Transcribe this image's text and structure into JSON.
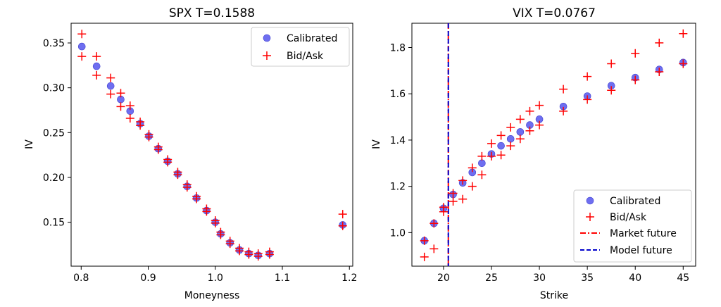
{
  "chart_data": [
    {
      "type": "scatter",
      "title": "SPX T=0.1588",
      "xlabel": "Moneyness",
      "ylabel": "IV",
      "xlim": [
        0.785,
        1.205
      ],
      "ylim": [
        0.101,
        0.372
      ],
      "xticks": [
        0.8,
        0.9,
        1.0,
        1.1,
        1.2
      ],
      "xtick_labels": [
        "0.8",
        "0.9",
        "1.0",
        "1.1",
        "1.2"
      ],
      "yticks": [
        0.15,
        0.2,
        0.25,
        0.3,
        0.35
      ],
      "ytick_labels": [
        "0.15",
        "0.20",
        "0.25",
        "0.30",
        "0.35"
      ],
      "legend": {
        "placement": "top-right",
        "entries": [
          "Calibrated",
          "Bid/Ask"
        ]
      },
      "grid": false,
      "series": [
        {
          "name": "Calibrated",
          "marker": "circle",
          "color": "#6e6ef0",
          "x": [
            0.801,
            0.823,
            0.844,
            0.859,
            0.873,
            0.888,
            0.901,
            0.915,
            0.929,
            0.944,
            0.958,
            0.972,
            0.987,
            1.0,
            1.008,
            1.022,
            1.036,
            1.05,
            1.064,
            1.081,
            1.19
          ],
          "y": [
            0.346,
            0.324,
            0.302,
            0.287,
            0.274,
            0.26,
            0.246,
            0.232,
            0.218,
            0.204,
            0.19,
            0.177,
            0.163,
            0.15,
            0.137,
            0.127,
            0.119,
            0.115,
            0.113,
            0.115,
            0.147
          ]
        },
        {
          "name": "Bid/Ask",
          "marker": "plus",
          "color": "#ff0000",
          "x": [
            0.801,
            0.801,
            0.823,
            0.823,
            0.844,
            0.844,
            0.859,
            0.859,
            0.873,
            0.873,
            0.888,
            0.888,
            0.901,
            0.901,
            0.915,
            0.915,
            0.929,
            0.929,
            0.944,
            0.944,
            0.958,
            0.958,
            0.972,
            0.972,
            0.987,
            0.987,
            1.0,
            1.0,
            1.008,
            1.008,
            1.022,
            1.022,
            1.036,
            1.036,
            1.05,
            1.05,
            1.064,
            1.064,
            1.081,
            1.081,
            1.19,
            1.19
          ],
          "y": [
            0.36,
            0.335,
            0.335,
            0.314,
            0.311,
            0.293,
            0.294,
            0.279,
            0.28,
            0.266,
            0.262,
            0.258,
            0.248,
            0.245,
            0.234,
            0.231,
            0.22,
            0.217,
            0.206,
            0.203,
            0.192,
            0.189,
            0.179,
            0.176,
            0.165,
            0.162,
            0.152,
            0.149,
            0.139,
            0.136,
            0.129,
            0.126,
            0.121,
            0.118,
            0.117,
            0.114,
            0.115,
            0.112,
            0.117,
            0.114,
            0.159,
            0.146
          ]
        }
      ]
    },
    {
      "type": "scatter",
      "title": "VIX T=0.0767",
      "xlabel": "Strike",
      "ylabel": "IV",
      "xlim": [
        16.7,
        46.3
      ],
      "ylim": [
        0.855,
        1.905
      ],
      "xticks": [
        20,
        25,
        30,
        35,
        40,
        45
      ],
      "xtick_labels": [
        "20",
        "25",
        "30",
        "35",
        "40",
        "45"
      ],
      "yticks": [
        1.0,
        1.2,
        1.4,
        1.6,
        1.8
      ],
      "ytick_labels": [
        "1.0",
        "1.2",
        "1.4",
        "1.6",
        "1.8"
      ],
      "legend": {
        "placement": "bottom-right",
        "entries": [
          "Calibrated",
          "Bid/Ask",
          "Market future",
          "Model future"
        ]
      },
      "grid": false,
      "series": [
        {
          "name": "Calibrated",
          "marker": "circle",
          "color": "#6e6ef0",
          "x": [
            18,
            19,
            20,
            21,
            22,
            23,
            24,
            25,
            26,
            27,
            28,
            29,
            30,
            32.5,
            35,
            37.5,
            40,
            42.5,
            45
          ],
          "y": [
            0.965,
            1.04,
            1.105,
            1.165,
            1.215,
            1.26,
            1.3,
            1.34,
            1.375,
            1.405,
            1.435,
            1.465,
            1.49,
            1.545,
            1.59,
            1.635,
            1.67,
            1.705,
            1.735
          ]
        },
        {
          "name": "Bid/Ask",
          "marker": "plus",
          "color": "#ff0000",
          "x": [
            18,
            18,
            19,
            19,
            20,
            20,
            21,
            21,
            22,
            22,
            23,
            23,
            24,
            24,
            25,
            25,
            26,
            26,
            27,
            27,
            28,
            28,
            29,
            29,
            30,
            30,
            32.5,
            32.5,
            35,
            35,
            37.5,
            37.5,
            40,
            40,
            42.5,
            42.5,
            45,
            45
          ],
          "y": [
            0.895,
            0.965,
            0.93,
            1.04,
            1.09,
            1.11,
            1.135,
            1.17,
            1.145,
            1.225,
            1.2,
            1.28,
            1.25,
            1.33,
            1.33,
            1.385,
            1.335,
            1.42,
            1.375,
            1.455,
            1.405,
            1.49,
            1.44,
            1.525,
            1.465,
            1.55,
            1.525,
            1.62,
            1.575,
            1.675,
            1.615,
            1.73,
            1.66,
            1.775,
            1.695,
            1.82,
            1.73,
            1.86
          ]
        }
      ],
      "vlines": [
        {
          "name": "Market future",
          "x": 20.5,
          "color": "#ff0000",
          "style": "dashdot"
        },
        {
          "name": "Model future",
          "x": 20.5,
          "color": "#0000cc",
          "style": "dashed"
        }
      ]
    }
  ]
}
